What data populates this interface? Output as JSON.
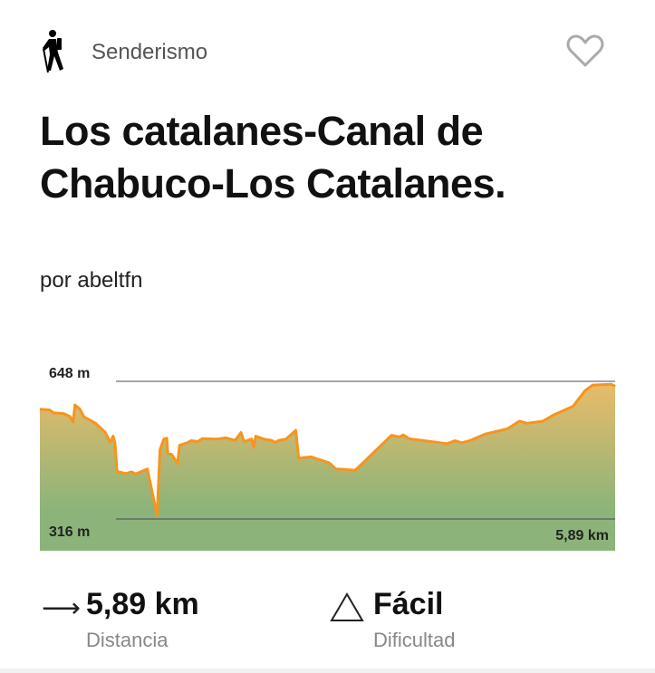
{
  "header": {
    "category": "Senderismo",
    "category_icon": "hiker-icon",
    "favorite_icon": "heart-outline-icon"
  },
  "title": "Los catalanes-Canal de Chabuco-Los Catalanes.",
  "author": "por abeltfn",
  "colors": {
    "line": "#f7941d",
    "fill_top": "#e9bb6a",
    "fill_bottom": "#8cb47a"
  },
  "chart_data": {
    "type": "area",
    "xlabel": "",
    "ylabel": "",
    "max_label": "648 m",
    "min_label": "316 m",
    "distance_label": "5,89 km",
    "xlim": [
      0,
      5.89
    ],
    "ylim": [
      240,
      648
    ],
    "x": [
      0,
      0.1,
      0.14,
      0.25,
      0.31,
      0.34,
      0.36,
      0.41,
      0.45,
      0.57,
      0.67,
      0.72,
      0.75,
      0.77,
      0.79,
      0.88,
      0.94,
      0.98,
      1.1,
      1.2,
      1.23,
      1.27,
      1.3,
      1.31,
      1.35,
      1.41,
      1.43,
      1.51,
      1.55,
      1.62,
      1.66,
      1.82,
      1.9,
      2.0,
      2.06,
      2.09,
      2.17,
      2.19,
      2.21,
      2.29,
      2.37,
      2.41,
      2.45,
      2.52,
      2.62,
      2.65,
      2.78,
      2.84,
      2.96,
      3.03,
      3.23,
      3.6,
      3.68,
      3.72,
      3.78,
      4.17,
      4.25,
      4.32,
      4.4,
      4.56,
      4.79,
      4.91,
      4.99,
      5.15,
      5.26,
      5.46,
      5.58,
      5.66,
      5.85,
      5.89
    ],
    "y": [
      581,
      579,
      572,
      570,
      563,
      550,
      591,
      581,
      563,
      547,
      525,
      501,
      516,
      498,
      431,
      426,
      430,
      425,
      437,
      325,
      483,
      509,
      511,
      474,
      472,
      450,
      494,
      500,
      505,
      503,
      510,
      509,
      512,
      506,
      525,
      503,
      509,
      489,
      516,
      509,
      506,
      501,
      506,
      509,
      530,
      463,
      466,
      461,
      452,
      437,
      434,
      518,
      514,
      519,
      510,
      498,
      505,
      500,
      505,
      521,
      534,
      552,
      547,
      552,
      567,
      588,
      625,
      639,
      641,
      636
    ]
  },
  "stats": {
    "distance": {
      "icon": "arrow-right-icon",
      "value": "5,89 km",
      "label": "Distancia"
    },
    "difficulty": {
      "icon": "triangle-icon",
      "value": "Fácil",
      "label": "Dificultad"
    }
  }
}
